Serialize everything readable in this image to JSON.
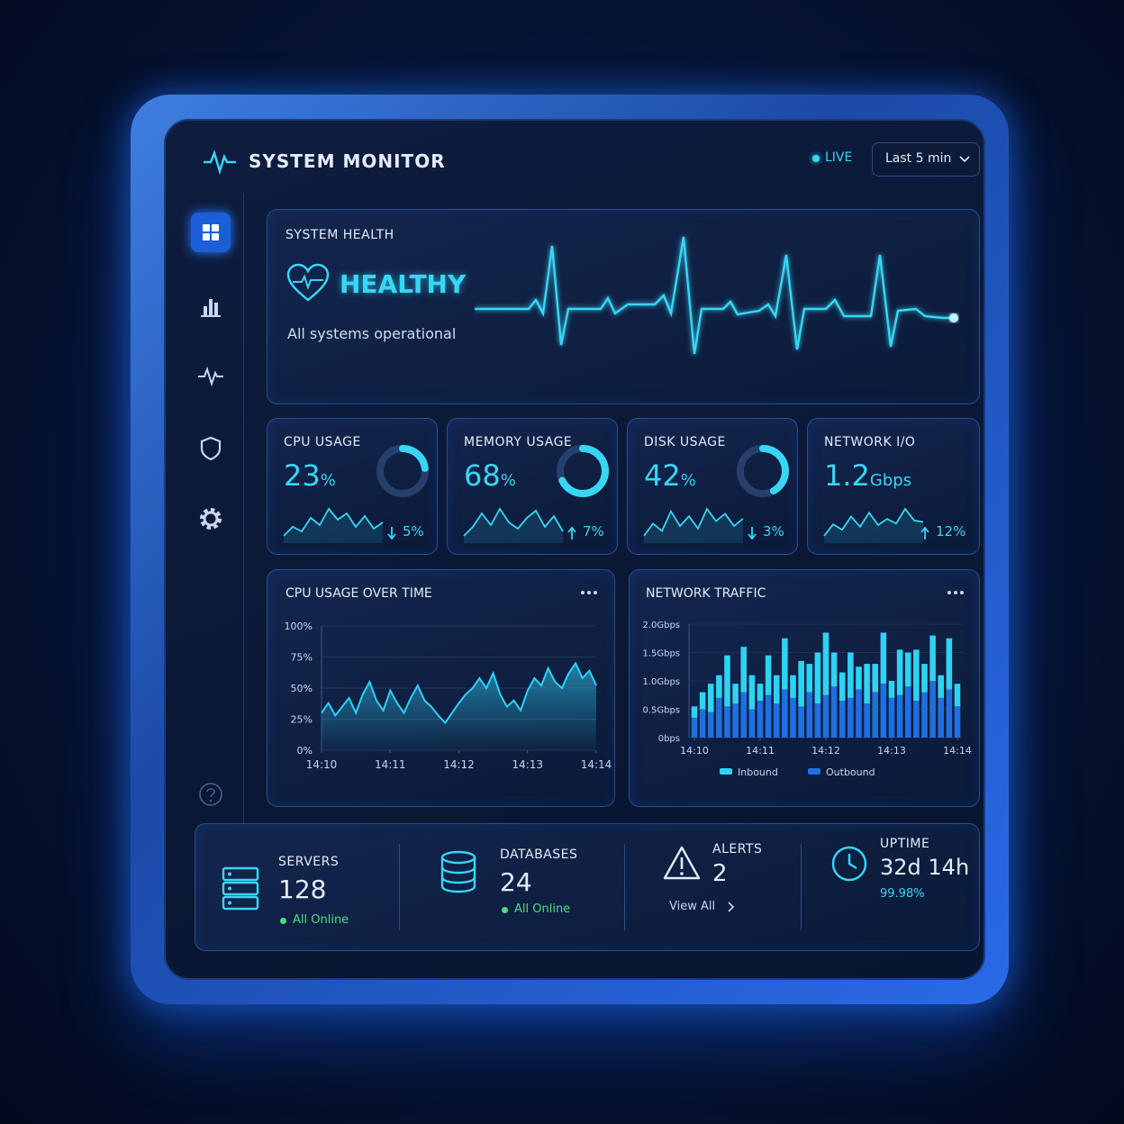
{
  "header": {
    "title": "SYSTEM MONITOR",
    "live": "LIVE",
    "time_range": "Last 5 min"
  },
  "health": {
    "label": "SYSTEM HEALTH",
    "status": "HEALTHY",
    "message": "All systems operational"
  },
  "metrics": [
    {
      "label": "CPU USAGE",
      "value": 23,
      "unit": "%",
      "change": "5%",
      "direction": "down",
      "ring": true,
      "trend": [
        3,
        4,
        3.5,
        5,
        4.2,
        6,
        4.8,
        5.5,
        4,
        5.2,
        3.8,
        4.5
      ]
    },
    {
      "label": "MEMORY USAGE",
      "value": 68,
      "unit": "%",
      "change": "7%",
      "direction": "up",
      "ring": true,
      "trend": [
        3,
        4,
        5.5,
        4.2,
        6,
        4.5,
        3.8,
        5,
        5.8,
        4,
        5.2,
        3.5
      ]
    },
    {
      "label": "DISK USAGE",
      "value": 42,
      "unit": "%",
      "change": "3%",
      "direction": "down",
      "ring": true,
      "trend": [
        4,
        4.5,
        4.2,
        5,
        4.4,
        4.8,
        4.3,
        5.1,
        4.6,
        4.9,
        4.4,
        4.7
      ]
    },
    {
      "label": "NETWORK I/O",
      "value": 1.2,
      "unit": "Gbps",
      "change": "12%",
      "direction": "up",
      "ring": false,
      "trend": [
        3,
        4.5,
        3.8,
        5.5,
        4.2,
        6,
        4.4,
        5.2,
        4.6,
        6.5,
        5,
        4.8
      ]
    }
  ],
  "cpu_chart": {
    "type": "line",
    "title": "CPU USAGE OVER TIME",
    "color": "#2fd0f5",
    "x": [
      0,
      0.1,
      0.2,
      0.3,
      0.4,
      0.5,
      0.6,
      0.7,
      0.8,
      0.9,
      1,
      1.1,
      1.2,
      1.3,
      1.4,
      1.5,
      1.6,
      1.7,
      1.8,
      1.9,
      2,
      2.1,
      2.2,
      2.3,
      2.4,
      2.5,
      2.6,
      2.7,
      2.8,
      2.9,
      3,
      3.1,
      3.2,
      3.3,
      3.4,
      3.5,
      3.6,
      3.7,
      3.8,
      3.9,
      4
    ],
    "values": [
      30,
      38,
      28,
      35,
      42,
      30,
      45,
      55,
      40,
      32,
      48,
      38,
      30,
      42,
      52,
      40,
      35,
      28,
      22,
      30,
      38,
      45,
      50,
      58,
      50,
      62,
      45,
      35,
      40,
      32,
      48,
      58,
      52,
      66,
      55,
      50,
      62,
      70,
      58,
      64,
      52
    ],
    "xlim": [
      0,
      4
    ],
    "xticks": [
      {
        "value": 0,
        "label": "14:10"
      },
      {
        "value": 1,
        "label": "14:11"
      },
      {
        "value": 2,
        "label": "14:12"
      },
      {
        "value": 3,
        "label": "14:13"
      },
      {
        "value": 4,
        "label": "14:14"
      }
    ],
    "ylim": [
      0,
      100
    ],
    "yticks": [
      {
        "value": 0,
        "label": "0%"
      },
      {
        "value": 25,
        "label": "25%"
      },
      {
        "value": 50,
        "label": "50%"
      },
      {
        "value": 75,
        "label": "75%"
      },
      {
        "value": 100,
        "label": "100%"
      }
    ],
    "grid": true
  },
  "network_chart": {
    "type": "bar",
    "title": "NETWORK TRAFFIC",
    "stacked": true,
    "x": [
      0,
      0.125,
      0.25,
      0.375,
      0.5,
      0.625,
      0.75,
      0.875,
      1,
      1.125,
      1.25,
      1.375,
      1.5,
      1.625,
      1.75,
      1.875,
      2,
      2.125,
      2.25,
      2.375,
      2.5,
      2.625,
      2.75,
      2.875,
      3,
      3.125,
      3.25,
      3.375,
      3.5,
      3.625,
      3.75,
      3.875,
      4
    ],
    "series": [
      {
        "name": "Outbound",
        "color": "#1f6fe0",
        "values": [
          0.35,
          0.5,
          0.45,
          0.7,
          0.55,
          0.6,
          0.8,
          0.5,
          0.65,
          0.75,
          0.6,
          0.85,
          0.7,
          0.55,
          0.8,
          0.6,
          0.75,
          0.9,
          0.65,
          0.7,
          0.85,
          0.6,
          0.8,
          0.95,
          0.7,
          0.75,
          0.9,
          0.65,
          0.8,
          1.0,
          0.7,
          0.85,
          0.55
        ]
      },
      {
        "name": "Inbound",
        "color": "#2ed3f2",
        "values": [
          0.2,
          0.3,
          0.5,
          0.4,
          0.9,
          0.35,
          0.8,
          0.6,
          0.3,
          0.7,
          0.5,
          0.9,
          0.4,
          0.8,
          0.5,
          0.9,
          1.1,
          0.6,
          0.5,
          0.8,
          0.4,
          0.7,
          0.5,
          0.9,
          0.3,
          0.8,
          0.6,
          0.9,
          0.5,
          0.8,
          0.4,
          0.9,
          0.4
        ]
      }
    ],
    "xlim": [
      0,
      4
    ],
    "xticks": [
      {
        "value": 0,
        "label": "14:10"
      },
      {
        "value": 1,
        "label": "14:11"
      },
      {
        "value": 2,
        "label": "14:12"
      },
      {
        "value": 3,
        "label": "14:13"
      },
      {
        "value": 4,
        "label": "14:14"
      }
    ],
    "ylim": [
      0,
      2
    ],
    "yticks": [
      {
        "value": 0,
        "label": "0bps"
      },
      {
        "value": 0.5,
        "label": "0.5Gbps"
      },
      {
        "value": 1,
        "label": "1.0Gbps"
      },
      {
        "value": 1.5,
        "label": "1.5Gbps"
      },
      {
        "value": 2,
        "label": "2.0Gbps"
      }
    ]
  },
  "stats": [
    {
      "label": "SERVERS",
      "value": 128,
      "note": "All Online"
    },
    {
      "label": "DATABASES",
      "value": 24,
      "note": "All Online"
    },
    {
      "label": "ALERTS",
      "value": 2,
      "note": "View All"
    },
    {
      "label": "UPTIME",
      "value": "32d 14h",
      "note": "99.98%"
    }
  ]
}
